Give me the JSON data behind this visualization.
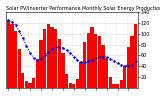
{
  "title": "Solar PV/Inverter Performance Monthly Solar Energy Production Value Running Average",
  "bar_values": [
    125,
    118,
    105,
    72,
    28,
    12,
    10,
    18,
    52,
    88,
    108,
    118,
    112,
    108,
    90,
    65,
    25,
    10,
    8,
    16,
    48,
    85,
    102,
    112,
    100,
    95,
    80,
    55,
    20,
    8,
    8,
    14,
    40,
    75,
    95,
    118
  ],
  "running_avg": [
    125,
    122,
    116,
    105,
    92,
    78,
    65,
    55,
    52,
    54,
    60,
    67,
    72,
    75,
    76,
    74,
    70,
    64,
    58,
    52,
    48,
    47,
    49,
    52,
    55,
    57,
    58,
    57,
    54,
    50,
    46,
    43,
    41,
    41,
    43,
    50
  ],
  "bar_color": "#ff0000",
  "avg_color": "#0000cc",
  "bg_color": "#ffffff",
  "grid_color": "#cccccc",
  "ylim": [
    0,
    140
  ],
  "ytick_vals": [
    20,
    40,
    60,
    80,
    100,
    120,
    140
  ],
  "n_bars": 36,
  "title_fontsize": 3.5,
  "tick_fontsize": 3.5
}
